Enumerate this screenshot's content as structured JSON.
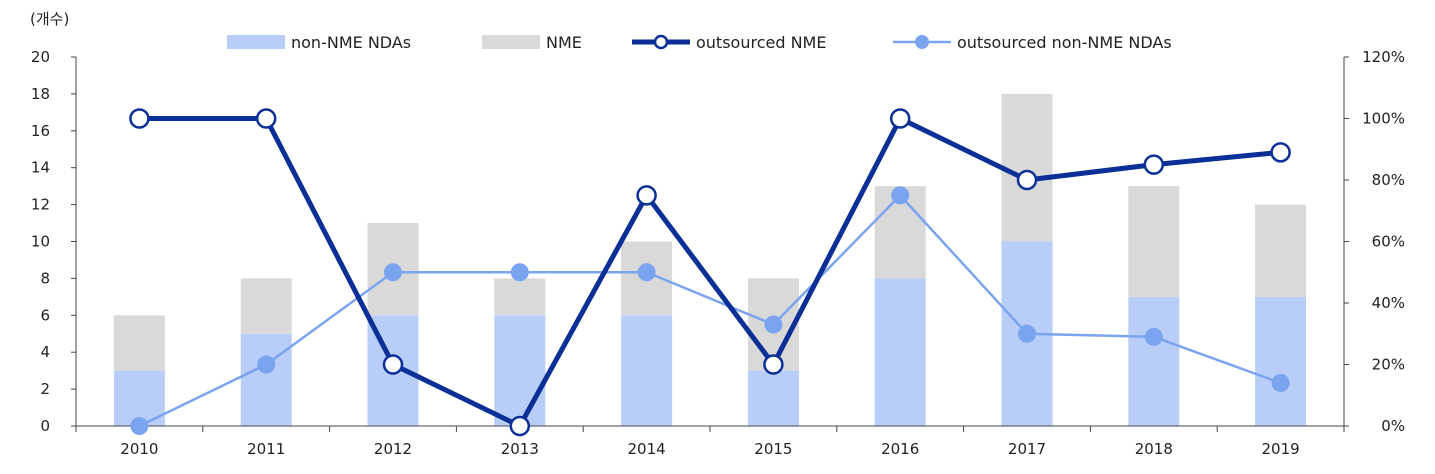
{
  "chart_data": {
    "type": "bar",
    "unit_label": "(개수)",
    "categories": [
      "2010",
      "2011",
      "2012",
      "2013",
      "2014",
      "2015",
      "2016",
      "2017",
      "2018",
      "2019"
    ],
    "y_left": {
      "min": 0,
      "max": 20,
      "step": 2,
      "ticks": [
        "0",
        "2",
        "4",
        "6",
        "8",
        "10",
        "12",
        "14",
        "16",
        "18",
        "20"
      ]
    },
    "y_right": {
      "min": 0,
      "max": 120,
      "step": 20,
      "ticks": [
        "0%",
        "20%",
        "40%",
        "60%",
        "80%",
        "100%",
        "120%"
      ]
    },
    "series": [
      {
        "name": "non-NME NDAs",
        "kind": "stacked-bar",
        "axis": "left",
        "color": "#b8cdf8",
        "values": [
          3,
          5,
          6,
          6,
          6,
          3,
          8,
          10,
          7,
          7
        ]
      },
      {
        "name": "NME",
        "kind": "stacked-bar",
        "axis": "left",
        "color": "#d9d9d9",
        "values": [
          3,
          3,
          5,
          2,
          4,
          5,
          5,
          8,
          6,
          5
        ]
      },
      {
        "name": "outsourced NME",
        "kind": "line",
        "axis": "right",
        "color": "#0a2f96",
        "values": [
          100,
          100,
          20,
          0,
          75,
          20,
          100,
          80,
          85,
          89
        ]
      },
      {
        "name": "outsourced non-NME NDAs",
        "kind": "line",
        "axis": "right",
        "color": "#7ba4f0",
        "values": [
          0,
          20,
          50,
          50,
          50,
          33,
          75,
          30,
          29,
          14
        ]
      }
    ],
    "legend_position": "top"
  }
}
